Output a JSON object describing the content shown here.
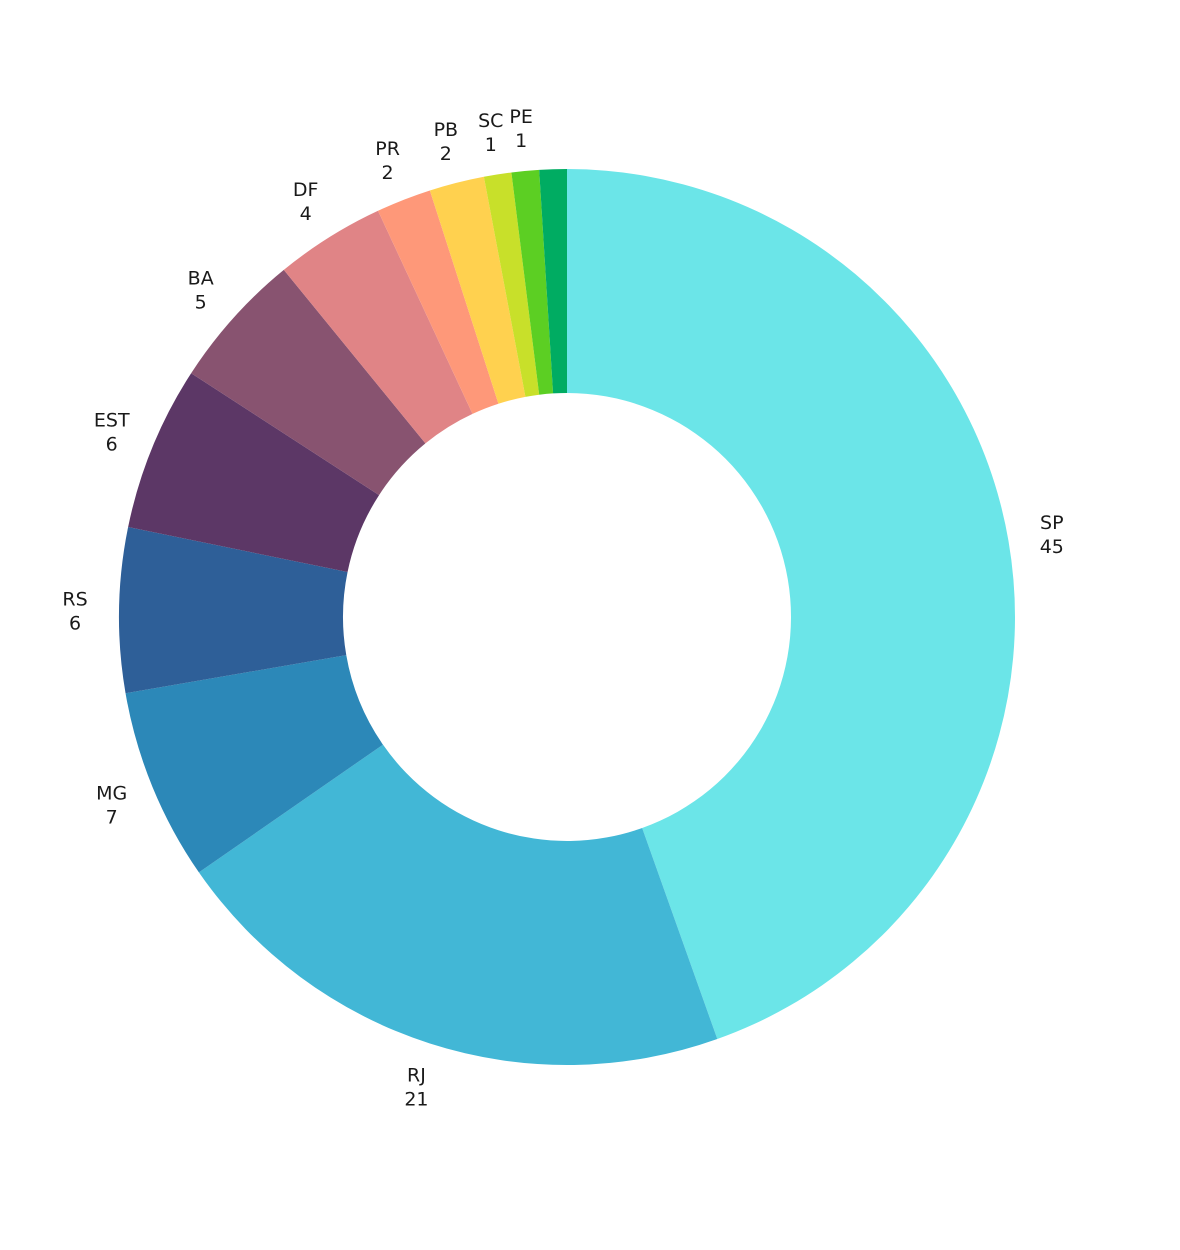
{
  "chart_data": {
    "type": "pie",
    "title": "",
    "xlabel": "",
    "ylabel": "",
    "donut": true,
    "start": "12 o'clock, clockwise",
    "slices": [
      {
        "label": "SP",
        "value": 45,
        "color": "#6be5e8"
      },
      {
        "label": "RJ",
        "value": 21,
        "color": "#42b7d6"
      },
      {
        "label": "MG",
        "value": 7,
        "color": "#2c88b8"
      },
      {
        "label": "RS",
        "value": 6,
        "color": "#2e5f98"
      },
      {
        "label": "EST",
        "value": 6,
        "color": "#5c3766"
      },
      {
        "label": "BA",
        "value": 5,
        "color": "#885370"
      },
      {
        "label": "DF",
        "value": 4,
        "color": "#e08486"
      },
      {
        "label": "PR",
        "value": 2,
        "color": "#fe9879"
      },
      {
        "label": "PB",
        "value": 2,
        "color": "#ffd14f"
      },
      {
        "label": "SC",
        "value": 1,
        "color": "#c8e02a"
      },
      {
        "label": "PE",
        "value": 1,
        "color": "#5ccf23"
      },
      {
        "label": "",
        "value": 1,
        "color": "#00ac62"
      }
    ]
  }
}
